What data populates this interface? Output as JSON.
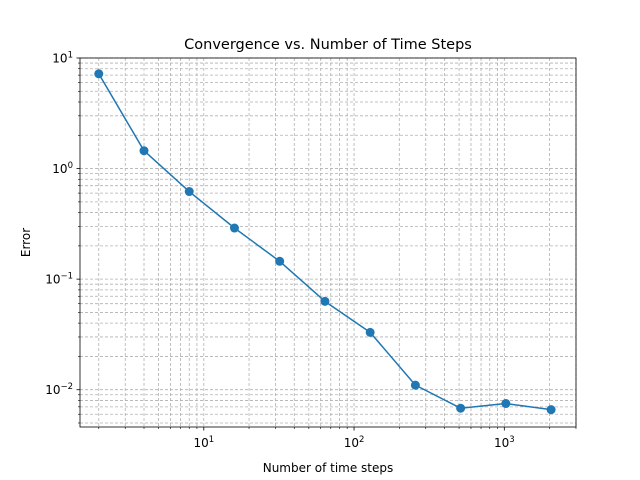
{
  "chart_data": {
    "type": "line",
    "title": "Convergence vs. Number of Time Steps",
    "xlabel": "Number of time steps",
    "ylabel": "Error",
    "x_scale": "log",
    "y_scale": "log",
    "xlim": [
      1.5,
      3000
    ],
    "ylim": [
      0.0046,
      10
    ],
    "grid": true,
    "grid_which": "both",
    "x_major_ticks": [
      {
        "value": 10,
        "base": "10",
        "exp": "1"
      },
      {
        "value": 100,
        "base": "10",
        "exp": "2"
      },
      {
        "value": 1000,
        "base": "10",
        "exp": "3"
      }
    ],
    "y_major_ticks": [
      {
        "value": 0.01,
        "base": "10",
        "exp": "−2"
      },
      {
        "value": 0.1,
        "base": "10",
        "exp": "−1"
      },
      {
        "value": 1,
        "base": "10",
        "exp": "0"
      },
      {
        "value": 10,
        "base": "10",
        "exp": "1"
      }
    ],
    "line_color": "#1f77b4",
    "grid_color": "#b0b0b0",
    "series": [
      {
        "x": [
          2,
          4,
          8,
          16,
          32,
          64,
          128,
          256,
          512,
          1024,
          2048
        ],
        "y": [
          7.2,
          1.45,
          0.62,
          0.29,
          0.145,
          0.063,
          0.033,
          0.011,
          0.0068,
          0.0075,
          0.0066
        ],
        "marker": "circle"
      }
    ]
  }
}
